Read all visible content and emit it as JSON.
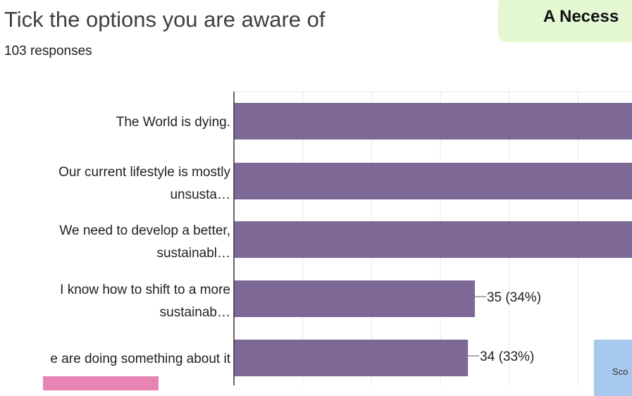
{
  "question": {
    "title": "Tick the options you are aware of",
    "responses": "103 responses"
  },
  "side_card": {
    "text": "A Necess"
  },
  "side_note": {
    "text": "Sco"
  },
  "colors": {
    "bar": "#7d6896",
    "axis": "#333333",
    "grid": "#e8e8e8"
  },
  "chart_data": {
    "type": "bar",
    "orientation": "horizontal",
    "title": "Tick the options you are aware of",
    "categories": [
      [
        "The World is dying."
      ],
      [
        "Our current lifestyle is mostly",
        "unsusta…"
      ],
      [
        "We need to develop a better,",
        "sustainabl…"
      ],
      [
        "I know how to shift to a more",
        "sustainab…"
      ],
      [
        "e are doing something about it"
      ]
    ],
    "values": [
      null,
      null,
      null,
      35,
      34
    ],
    "data_labels": [
      "",
      "",
      "",
      "35 (34%)",
      "34 (33%)"
    ],
    "xlim": [
      0,
      57.5
    ],
    "grid": true,
    "legend": "none"
  }
}
